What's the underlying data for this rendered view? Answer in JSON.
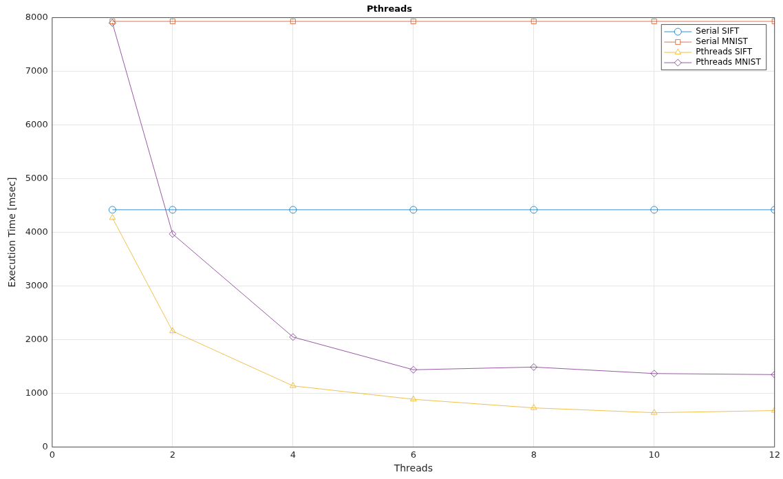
{
  "chart_data": {
    "type": "line",
    "title": "Pthreads",
    "xlabel": "Threads",
    "ylabel": "Execution Time [msec]",
    "x": [
      1,
      2,
      4,
      6,
      8,
      10,
      12
    ],
    "series": [
      {
        "name": "Serial SIFT",
        "color": "#0072bd",
        "marker": "circle",
        "values": [
          4420,
          4420,
          4420,
          4420,
          4420,
          4420,
          4420
        ]
      },
      {
        "name": "Serial MNIST",
        "color": "#d95319",
        "marker": "square",
        "values": [
          7930,
          7930,
          7930,
          7930,
          7930,
          7930,
          7930
        ]
      },
      {
        "name": "Pthreads SIFT",
        "color": "#edb120",
        "marker": "triangle",
        "values": [
          4270,
          2160,
          1140,
          890,
          730,
          640,
          680
        ]
      },
      {
        "name": "Pthreads MNIST",
        "color": "#7e2f8e",
        "marker": "diamond",
        "values": [
          7900,
          3970,
          2050,
          1440,
          1490,
          1370,
          1350
        ]
      }
    ],
    "xlim": [
      0,
      12
    ],
    "xticks": [
      0,
      2,
      4,
      6,
      8,
      10,
      12
    ],
    "ylim": [
      0,
      8000
    ],
    "yticks": [
      0,
      1000,
      2000,
      3000,
      4000,
      5000,
      6000,
      7000,
      8000
    ],
    "grid": true,
    "legend": "top right",
    "line_style": "solid"
  }
}
